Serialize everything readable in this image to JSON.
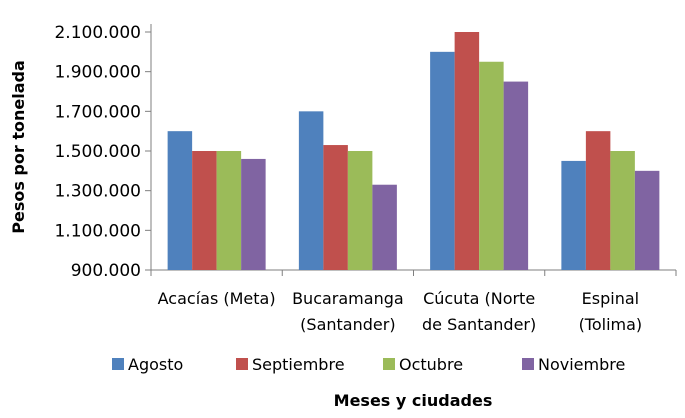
{
  "chart_data": {
    "type": "bar",
    "xlabel": "Meses y ciudades",
    "ylabel": "Pesos por tonelada",
    "ylim": [
      900000,
      2100000
    ],
    "yticks": [
      900000,
      1100000,
      1300000,
      1500000,
      1700000,
      1900000,
      2100000
    ],
    "ytick_labels": [
      "900.000",
      "1.100.000",
      "1.300.000",
      "1.500.000",
      "1.700.000",
      "1.900.000",
      "2.100.000"
    ],
    "grid": false,
    "legend_position": "bottom",
    "categories": [
      [
        "Acacías (Meta)"
      ],
      [
        "Bucaramanga",
        "(Santander)"
      ],
      [
        "Cúcuta (Norte",
        "de Santander)"
      ],
      [
        "Espinal",
        "(Tolima)"
      ]
    ],
    "series": [
      {
        "name": "Agosto",
        "color": "#4F81BD",
        "values": [
          1600000,
          1700000,
          2000000,
          1450000
        ]
      },
      {
        "name": "Septiembre",
        "color": "#C0504D",
        "values": [
          1500000,
          1530000,
          2100000,
          1600000
        ]
      },
      {
        "name": "Octubre",
        "color": "#9BBB59",
        "values": [
          1500000,
          1500000,
          1950000,
          1500000
        ]
      },
      {
        "name": "Noviembre",
        "color": "#8064A2",
        "values": [
          1460000,
          1330000,
          1850000,
          1400000
        ]
      }
    ]
  }
}
